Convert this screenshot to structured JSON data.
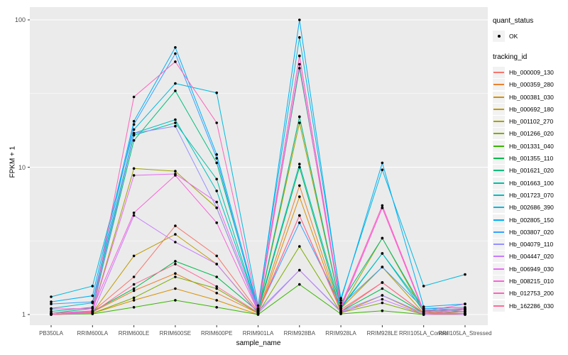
{
  "chart_data": {
    "type": "line",
    "title": "",
    "xlabel": "sample_name",
    "ylabel": "FPKM + 1",
    "y_scale": "log10",
    "y_ticks": [
      1,
      10,
      100
    ],
    "ylim_log": [
      -0.075,
      2.09
    ],
    "grid": "on",
    "panel_background": "#EBEBEB",
    "gridline_color": "#FFFFFF",
    "point_color": "#000000",
    "legend_position": "right",
    "categories": [
      "PB350LA",
      "RRIM600LA",
      "RRIM600LE",
      "RRIM600SE",
      "RRIM600PE",
      "RRIM901LA",
      "RRIM928BA",
      "RRIM928LA",
      "RRIM928LE",
      "RRII105LA_Control",
      "RRII105LA_Stressed"
    ],
    "series": [
      {
        "name": "Hb_000009_130",
        "color": "#F8766D",
        "values": [
          1.02,
          1.05,
          1.8,
          4.0,
          2.5,
          1.05,
          4.7,
          1.08,
          1.65,
          1.02,
          1.08
        ]
      },
      {
        "name": "Hb_000359_280",
        "color": "#EA8331",
        "values": [
          1.0,
          1.04,
          1.45,
          1.9,
          1.4,
          1.02,
          7.5,
          1.05,
          1.65,
          1.02,
          1.05
        ]
      },
      {
        "name": "Hb_000381_030",
        "color": "#D89000",
        "values": [
          1.0,
          1.02,
          1.25,
          1.5,
          1.25,
          1.0,
          6.3,
          1.02,
          1.35,
          1.0,
          1.02
        ]
      },
      {
        "name": "Hb_000692_180",
        "color": "#C09B00",
        "values": [
          1.0,
          1.03,
          2.5,
          3.5,
          2.2,
          1.03,
          22,
          1.1,
          2.1,
          1.02,
          1.0
        ]
      },
      {
        "name": "Hb_001102_270",
        "color": "#A3A500",
        "values": [
          1.0,
          1.05,
          9.8,
          9.4,
          5.3,
          1.05,
          20,
          1.1,
          3.3,
          1.04,
          1.02
        ]
      },
      {
        "name": "Hb_001266_020",
        "color": "#7CAE00",
        "values": [
          1.0,
          1.02,
          1.3,
          1.8,
          1.5,
          1.02,
          2.9,
          1.03,
          1.2,
          1.0,
          1.0
        ]
      },
      {
        "name": "Hb_001331_040",
        "color": "#39B600",
        "values": [
          1.0,
          1.01,
          1.12,
          1.25,
          1.12,
          1.0,
          1.6,
          1.01,
          1.06,
          1.0,
          1.0
        ]
      },
      {
        "name": "Hb_001355_110",
        "color": "#00BB4E",
        "values": [
          1.0,
          1.05,
          1.5,
          2.3,
          1.8,
          1.05,
          10,
          1.05,
          1.5,
          1.02,
          1.05
        ]
      },
      {
        "name": "Hb_001621_020",
        "color": "#00BF7D",
        "values": [
          1.02,
          1.1,
          15.2,
          33,
          10.7,
          1.1,
          47,
          1.2,
          3.3,
          1.08,
          1.05
        ]
      },
      {
        "name": "Hb_001663_100",
        "color": "#00C1A3",
        "values": [
          1.05,
          1.12,
          16.5,
          20,
          8.3,
          1.06,
          22,
          1.1,
          2.6,
          1.05,
          1.1
        ]
      },
      {
        "name": "Hb_001723_070",
        "color": "#00BFC4",
        "values": [
          1.1,
          1.2,
          17,
          21,
          6.9,
          1.08,
          10.5,
          1.12,
          2.6,
          1.1,
          1.12
        ]
      },
      {
        "name": "Hb_002686_390",
        "color": "#00BAE0",
        "values": [
          1.32,
          1.56,
          18,
          37,
          32,
          1.15,
          76,
          1.29,
          9.6,
          1.56,
          1.87
        ]
      },
      {
        "name": "Hb_002805_150",
        "color": "#00B0F6",
        "values": [
          1.22,
          1.34,
          20.5,
          65,
          12.2,
          1.1,
          100,
          1.25,
          10.7,
          1.13,
          1.18
        ]
      },
      {
        "name": "Hb_003807_020",
        "color": "#35A2FF",
        "values": [
          1.18,
          1.22,
          19.5,
          59,
          11.5,
          1.05,
          4.2,
          1.15,
          2.1,
          1.1,
          1.08
        ]
      },
      {
        "name": "Hb_004079_110",
        "color": "#9590FF",
        "values": [
          1.0,
          1.05,
          17,
          19,
          5.3,
          1.05,
          2.0,
          1.05,
          1.35,
          1.02,
          1.02
        ]
      },
      {
        "name": "Hb_004447_020",
        "color": "#C77CFF",
        "values": [
          1.0,
          1.02,
          4.7,
          3.1,
          2.2,
          1.02,
          2.0,
          1.04,
          1.27,
          1.0,
          1.0
        ]
      },
      {
        "name": "Hb_006949_030",
        "color": "#E76BF3",
        "values": [
          1.0,
          1.05,
          8.8,
          9.0,
          5.8,
          1.08,
          57,
          1.12,
          5.3,
          1.04,
          1.08
        ]
      },
      {
        "name": "Hb_008215_010",
        "color": "#FA62DB",
        "values": [
          1.09,
          1.1,
          4.9,
          8.8,
          4.2,
          1.05,
          50,
          1.1,
          5.3,
          1.05,
          1.18
        ]
      },
      {
        "name": "Hb_012753_200",
        "color": "#FF62BC",
        "values": [
          1.02,
          1.06,
          30,
          52,
          20,
          1.1,
          57,
          1.15,
          5.5,
          1.06,
          1.1
        ]
      },
      {
        "name": "Hb_162286_030",
        "color": "#FF6A98",
        "values": [
          1.0,
          1.03,
          1.6,
          2.2,
          1.55,
          1.03,
          4.7,
          1.05,
          1.65,
          1.02,
          1.05
        ]
      }
    ]
  },
  "legend": {
    "quant_title": "quant_status",
    "quant_items": [
      {
        "label": "OK"
      }
    ],
    "tracking_title": "tracking_id"
  }
}
